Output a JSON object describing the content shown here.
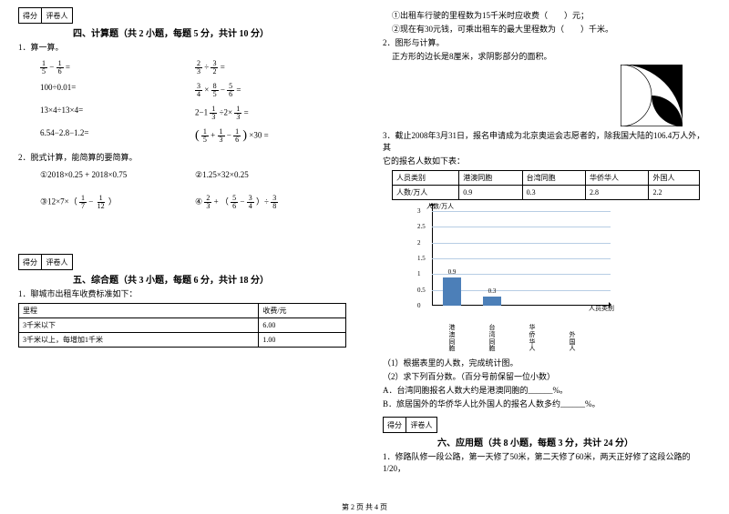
{
  "scorebox": {
    "left": "得分",
    "right": "评卷人"
  },
  "section4": {
    "title": "四、计算题（共 2 小题，每题 5 分，共计 10 分）",
    "q1_label": "1．算一算。",
    "row1a_lhs_num": "1",
    "row1a_lhs_den": "5",
    "row1a_rhs_num": "1",
    "row1a_rhs_den": "6",
    "row1a_op": "−",
    "row1b_lhs_num": "2",
    "row1b_lhs_den": "3",
    "row1b_rhs_num": "3",
    "row1b_rhs_den": "2",
    "row1b_op": "÷",
    "row2a": "100÷0.01=",
    "row2b_parts": [
      "3",
      "4",
      "×",
      "8",
      "5",
      "−",
      "5",
      "6",
      "="
    ],
    "row3a": "13×4÷13×4=",
    "row3b": "2−1",
    "row3b_f1n": "1",
    "row3b_f1d": "3",
    "row3b_mid": "÷2×",
    "row3b_f2n": "1",
    "row3b_f2d": "3",
    "row3b_eq": "=",
    "row4a": "6.54−2.8−1.2=",
    "row4b_open": "(",
    "row4b_f1n": "1",
    "row4b_f1d": "5",
    "row4b_p1": "+",
    "row4b_f2n": "1",
    "row4b_f2d": "3",
    "row4b_p2": "−",
    "row4b_f3n": "1",
    "row4b_f3d": "6",
    "row4b_close": ")×30 =",
    "q2_label": "2．脱式计算，能简算的要简算。",
    "q2_1": "①2018×0.25 + 2018×0.75",
    "q2_2": "②1.25×32×0.25",
    "q2_3_prefix": "③12×7×（",
    "q2_3_f1n": "1",
    "q2_3_f1d": "7",
    "q2_3_mid": "−",
    "q2_3_f2n": "1",
    "q2_3_f2d": "12",
    "q2_3_suffix": "）",
    "q2_4_prefix": "④",
    "q2_4_f1n": "2",
    "q2_4_f1d": "3",
    "q2_4_a": " + （",
    "q2_4_f2n": "5",
    "q2_4_f2d": "6",
    "q2_4_b": "−",
    "q2_4_f3n": "3",
    "q2_4_f3d": "4",
    "q2_4_c": "）÷",
    "q2_4_f4n": "3",
    "q2_4_f4d": "8"
  },
  "section5": {
    "title": "五、综合题（共 3 小题，每题 6 分，共计 18 分）",
    "q1": "1．聊城市出租车收费标准如下：",
    "table_h1": "里程",
    "table_h2": "收费/元",
    "table_r1c1": "3千米以下",
    "table_r1c2": "6.00",
    "table_r2c1": "3千米以上，每增加1千米",
    "table_r2c2": "1.00"
  },
  "right": {
    "l1": "①出租车行驶的里程数为15千米时应收费（　　）元；",
    "l2": "②现在有30元钱，可乘出租车的最大里程数为（　　）千米。",
    "q2": "2．图形与计算。",
    "q2_sub": "正方形的边长是8厘米，求阴影部分的面积。",
    "q3a": "3．截止2008年3月31日，报名申请成为北京奥运会志愿者的，除我国大陆的106.4万人外，其",
    "q3b": "它的报名人数如下表：",
    "table": {
      "headers": [
        "人员类别",
        "港澳同胞",
        "台湾同胞",
        "华侨华人",
        "外国人"
      ],
      "row_label": "人数/万人",
      "values": [
        "0.9",
        "0.3",
        "2.8",
        "2.2"
      ]
    },
    "chart": {
      "ylabel": "人数/万人",
      "xlabel": "人员类别",
      "yticks": [
        "0",
        "0.5",
        "1",
        "1.5",
        "2",
        "2.5",
        "3"
      ],
      "ymax": 3,
      "categories": [
        "港澳同胞",
        "台湾同胞",
        "华侨华人",
        "外国人"
      ],
      "values": [
        0.9,
        0.3,
        null,
        null
      ],
      "value_labels": [
        "0.9",
        "0.3",
        "",
        ""
      ],
      "bar_color": "#4c7fb8",
      "grid_color": "#b7cde4"
    },
    "sub1": "（1）根据表里的人数，完成统计图。",
    "sub2": "（2）求下列百分数。（百分号前保留一位小数）",
    "subA": "A．台湾同胞报名人数大约是港澳同胞的______%。",
    "subB": "B．旅居国外的华侨华人比外国人的报名人数多约______%。"
  },
  "section6": {
    "title": "六、应用题（共 8 小题，每题 3 分，共计 24 分）",
    "q1": "1．修路队修一段公路，第一天修了50米，第二天修了60米，两天正好修了这段公路的1/20，"
  },
  "footer": "第 2 页 共 4 页"
}
